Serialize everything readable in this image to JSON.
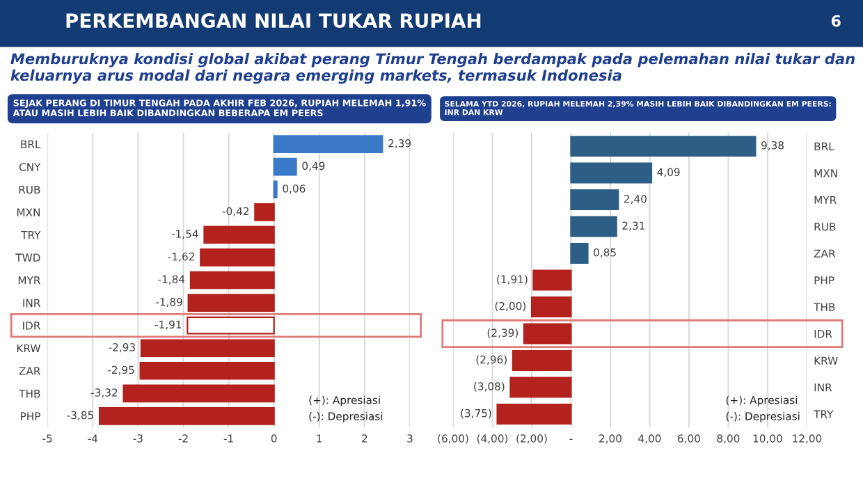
{
  "chart_data": [
    {
      "type": "bar",
      "orientation": "horizontal",
      "title": "SEJAK PERANG DI TIMUR TENGAH PADA AKHIR FEB 2026, RUPIAH MELEMAH 1,91%\nATAU MASIH LEBIH BAIK DIBANDINGKAN BEBERAPA EM PEERS",
      "categories": [
        "BRL",
        "CNY",
        "RUB",
        "MXN",
        "TRY",
        "TWD",
        "MYR",
        "INR",
        "IDR",
        "KRW",
        "ZAR",
        "THB",
        "PHP"
      ],
      "values": [
        2.39,
        0.49,
        0.06,
        -0.42,
        -1.54,
        -1.62,
        -1.84,
        -1.89,
        -1.91,
        -2.93,
        -2.95,
        -3.32,
        -3.85
      ],
      "colors": [
        "#3a78c8",
        "#3a78c8",
        "#3a78c8",
        "#b3221c",
        "#b3221c",
        "#b3221c",
        "#b3221c",
        "#b3221c",
        "#ffffff",
        "#b3221c",
        "#b3221c",
        "#b3221c",
        "#b3221c"
      ],
      "value_labels": [
        "2,39",
        "0,49",
        "0,06",
        "-0,42",
        "-1,54",
        "-1,62",
        "-1,84",
        "-1,89",
        "-1,91",
        "-2,93",
        "-2,95",
        "-3,32",
        "-3,85"
      ],
      "xlim": [
        -5,
        3
      ],
      "xticks": [
        -5,
        -4,
        -3,
        -2,
        -1,
        0,
        1,
        2,
        3
      ],
      "grid": "x",
      "annotations": [
        "PERKEMBANGAN NILAI TUKAR RUPIAH",
        "6",
        "Memburuknya kondisi global akibat perang Timur Tengah berdampak pada pelemahan nilai tukar dan keluarnya arus modal dari negara emerging markets, termasuk Indonesia",
        "(+): Apresiasi",
        "(-): Depresiasi"
      ]
    },
    {
      "type": "bar",
      "orientation": "horizontal",
      "title": "SELAMA YTD 2026, RUPIAH MELEMAH 2,39% MASIH LEBIH BAIK DIBANDINGKAN EM PEERS:\nINR DAN KRW",
      "categories": [
        "BRL",
        "MXN",
        "MYR",
        "RUB",
        "ZAR",
        "PHP",
        "THB",
        "IDR",
        "KRW",
        "INR",
        "TRY"
      ],
      "values": [
        9.38,
        4.09,
        2.4,
        2.31,
        0.85,
        -1.91,
        -2.0,
        -2.39,
        -2.96,
        -3.08,
        -3.75
      ],
      "colors": [
        "#2d5f86",
        "#2d5f86",
        "#2d5f86",
        "#2d5f86",
        "#2d5f86",
        "#b3221c",
        "#b3221c",
        "#b3221c",
        "#b3221c",
        "#b3221c",
        "#b3221c"
      ],
      "value_labels": [
        "9,38",
        "4,09",
        "2,40",
        "2,31",
        "0,85",
        "(1,91)",
        "(2,00)",
        "(2,39)",
        "(2,96)",
        "(3,08)",
        "(3,75)"
      ],
      "xlim": [
        -6,
        12
      ],
      "xticks": [
        {
          "value": -6,
          "label": "(6,00)"
        },
        {
          "value": -4,
          "label": "(4,00)"
        },
        {
          "value": -2,
          "label": "(2,00)"
        },
        {
          "value": 0,
          "label": "-"
        },
        {
          "value": 2,
          "label": "2,00"
        },
        {
          "value": 4,
          "label": "4,00"
        },
        {
          "value": 6,
          "label": "6,00"
        },
        {
          "value": 8,
          "label": "8,00"
        },
        {
          "value": 10,
          "label": "10,00"
        },
        {
          "value": 12,
          "label": "12,00"
        }
      ],
      "grid": "x",
      "annotations": [
        "(+): Apresiasi",
        "(-): Depresiasi"
      ]
    }
  ]
}
